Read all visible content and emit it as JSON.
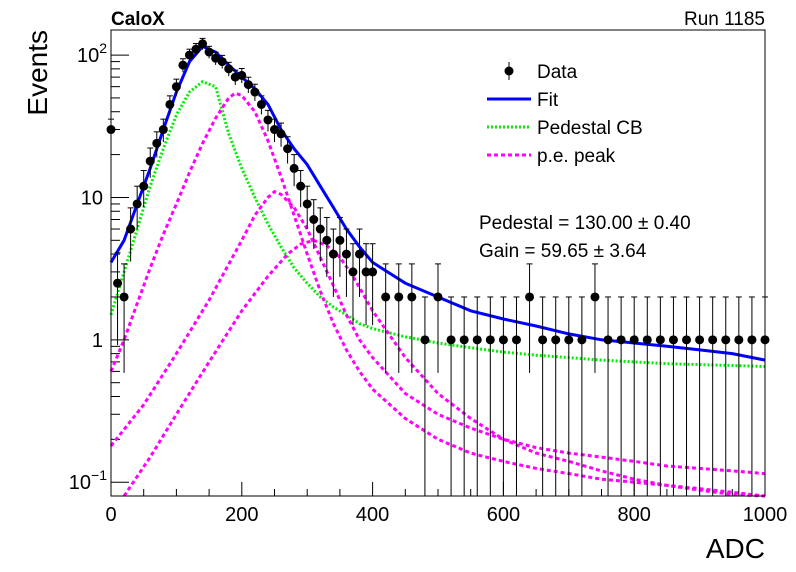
{
  "header": {
    "experiment": "CaloX",
    "run": "Run 1185"
  },
  "chart_data": {
    "type": "scatter",
    "xlabel": "ADC",
    "ylabel": "Events",
    "xlim": [
      0,
      1000
    ],
    "ylim": [
      0.08,
      150
    ],
    "yscale": "log",
    "grid": false,
    "legend_position": "top-right",
    "x_ticks": [
      {
        "value": 0,
        "label": "0"
      },
      {
        "value": 200,
        "label": "200"
      },
      {
        "value": 400,
        "label": "400"
      },
      {
        "value": 600,
        "label": "600"
      },
      {
        "value": 800,
        "label": "800"
      },
      {
        "value": 1000,
        "label": "1000"
      }
    ],
    "y_ticks": [
      {
        "value": 0.1,
        "base": "10",
        "exp": "−1"
      },
      {
        "value": 1,
        "base": "1",
        "exp": ""
      },
      {
        "value": 10,
        "base": "10",
        "exp": ""
      },
      {
        "value": 100,
        "base": "10",
        "exp": "2"
      }
    ],
    "annotations": [
      {
        "name": "Pedestal",
        "text": "Pedestal = 130.00 ± 0.40"
      },
      {
        "name": "Gain",
        "text": "Gain = 59.65 ± 3.64"
      }
    ],
    "series": [
      {
        "name": "Data",
        "kind": "points",
        "color": "#000000",
        "x": [
          0,
          10,
          20,
          30,
          40,
          50,
          60,
          70,
          80,
          90,
          100,
          110,
          120,
          130,
          140,
          150,
          160,
          170,
          180,
          190,
          200,
          210,
          220,
          230,
          240,
          250,
          260,
          270,
          280,
          290,
          300,
          310,
          320,
          330,
          340,
          350,
          360,
          370,
          380,
          390,
          400,
          420,
          440,
          460,
          480,
          500,
          520,
          540,
          560,
          580,
          600,
          620,
          640,
          660,
          680,
          700,
          720,
          740,
          760,
          780,
          800,
          820,
          840,
          860,
          880,
          900,
          920,
          940,
          960,
          980,
          1000
        ],
        "y": [
          30,
          2.5,
          2,
          6,
          9,
          12,
          18,
          24,
          30,
          45,
          60,
          85,
          100,
          110,
          120,
          105,
          95,
          90,
          80,
          70,
          72,
          62,
          55,
          45,
          35,
          30,
          28,
          22,
          16,
          12,
          9,
          7,
          6,
          5,
          4,
          5,
          4,
          3,
          4,
          3,
          3,
          2,
          2,
          2,
          1,
          2,
          1,
          1,
          1,
          1,
          1,
          1,
          2,
          1,
          1,
          1,
          1,
          2,
          1,
          1,
          1,
          1,
          1,
          1,
          1,
          1,
          1,
          1,
          1,
          1,
          1
        ]
      },
      {
        "name": "Fit",
        "kind": "line",
        "color": "#0000ff",
        "dash": "",
        "x": [
          0,
          20,
          40,
          60,
          80,
          100,
          120,
          140,
          160,
          180,
          200,
          220,
          240,
          260,
          280,
          300,
          320,
          340,
          360,
          380,
          400,
          450,
          500,
          550,
          600,
          650,
          700,
          750,
          800,
          850,
          900,
          950,
          1000
        ],
        "y": [
          3.5,
          5,
          9,
          16,
          30,
          55,
          90,
          115,
          105,
          85,
          70,
          58,
          45,
          30,
          22,
          17,
          12,
          8.5,
          6,
          4.5,
          3.5,
          2.5,
          2,
          1.6,
          1.4,
          1.25,
          1.1,
          1,
          0.95,
          0.9,
          0.85,
          0.8,
          0.72
        ]
      },
      {
        "name": "Pedestal CB",
        "kind": "line",
        "color": "#00ee00",
        "dash": "2,2",
        "x": [
          0,
          20,
          40,
          60,
          80,
          100,
          120,
          140,
          160,
          180,
          200,
          220,
          240,
          260,
          280,
          300,
          320,
          340,
          360,
          380,
          400,
          450,
          500,
          550,
          600,
          650,
          700,
          750,
          800,
          850,
          900,
          950,
          1000
        ],
        "y": [
          1.5,
          3,
          6,
          12,
          22,
          38,
          55,
          65,
          60,
          28,
          16,
          10,
          6.5,
          4.5,
          3.2,
          2.5,
          2,
          1.7,
          1.5,
          1.3,
          1.2,
          1.05,
          0.95,
          0.88,
          0.82,
          0.78,
          0.75,
          0.72,
          0.7,
          0.68,
          0.67,
          0.66,
          0.65
        ]
      },
      {
        "name": "p.e. peak",
        "kind": "line",
        "color": "#ff00ff",
        "dash": "4,3",
        "x": [
          0,
          20,
          40,
          60,
          80,
          100,
          120,
          140,
          160,
          180,
          190,
          200,
          220,
          240,
          260,
          280,
          300,
          320,
          340,
          360,
          380,
          400,
          450,
          500,
          550,
          600,
          650,
          700,
          750,
          800,
          850,
          900,
          950,
          1000
        ],
        "y": [
          0.6,
          1,
          1.8,
          3.2,
          5.5,
          9,
          15,
          24,
          36,
          50,
          54,
          52,
          40,
          25,
          14,
          7.5,
          4,
          2.2,
          1.3,
          0.85,
          0.6,
          0.45,
          0.28,
          0.2,
          0.16,
          0.14,
          0.125,
          0.115,
          0.105,
          0.1,
          0.095,
          0.09,
          0.085,
          0.08
        ]
      },
      {
        "name": "",
        "kind": "line",
        "color": "#ff00ff",
        "dash": "4,3",
        "x": [
          0,
          50,
          100,
          150,
          200,
          220,
          240,
          250,
          260,
          280,
          300,
          320,
          340,
          360,
          380,
          400,
          450,
          500,
          550,
          600,
          650,
          700,
          750,
          800,
          850,
          900,
          950,
          1000
        ],
        "y": [
          0.18,
          0.35,
          0.8,
          1.9,
          5,
          7.5,
          10,
          11,
          10.5,
          8.5,
          6,
          3.8,
          2.4,
          1.5,
          1,
          0.75,
          0.42,
          0.3,
          0.24,
          0.2,
          0.175,
          0.16,
          0.15,
          0.14,
          0.13,
          0.125,
          0.12,
          0.115
        ]
      },
      {
        "name": "",
        "kind": "line",
        "color": "#ff00ff",
        "dash": "4,3",
        "x": [
          20,
          60,
          100,
          150,
          200,
          240,
          270,
          290,
          310,
          330,
          350,
          370,
          400,
          450,
          500,
          550,
          600,
          650,
          700,
          750,
          800,
          850,
          900,
          950,
          1000
        ],
        "y": [
          0.08,
          0.15,
          0.3,
          0.7,
          1.6,
          2.8,
          4,
          4.7,
          5,
          4.6,
          3.8,
          2.8,
          1.6,
          0.75,
          0.42,
          0.28,
          0.2,
          0.16,
          0.14,
          0.12,
          0.105,
          0.095,
          0.088,
          0.082,
          0.078
        ]
      }
    ]
  }
}
